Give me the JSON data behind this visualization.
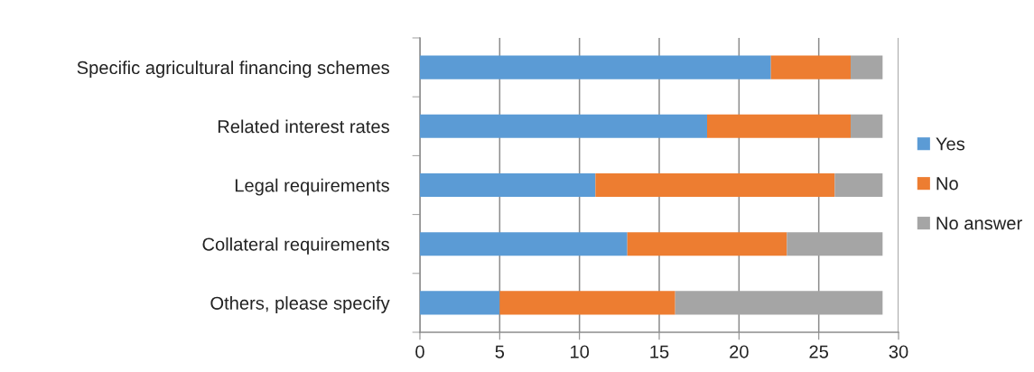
{
  "chart_data": {
    "type": "bar",
    "orientation": "horizontal",
    "stacked": true,
    "categories": [
      "Specific agricultural financing schemes",
      "Related interest rates",
      "Legal requirements",
      "Collateral requirements",
      "Others, please specify"
    ],
    "series": [
      {
        "name": "Yes",
        "color": "#5b9bd5",
        "values": [
          22,
          18,
          11,
          13,
          5
        ]
      },
      {
        "name": "No",
        "color": "#ed7d31",
        "values": [
          5,
          9,
          15,
          10,
          11
        ]
      },
      {
        "name": "No answer",
        "color": "#a5a5a5",
        "values": [
          2,
          2,
          3,
          6,
          13
        ]
      }
    ],
    "xlim": [
      0,
      30
    ],
    "xticks": [
      0,
      5,
      10,
      15,
      20,
      25,
      30
    ],
    "grid": "x",
    "legend": "right"
  }
}
